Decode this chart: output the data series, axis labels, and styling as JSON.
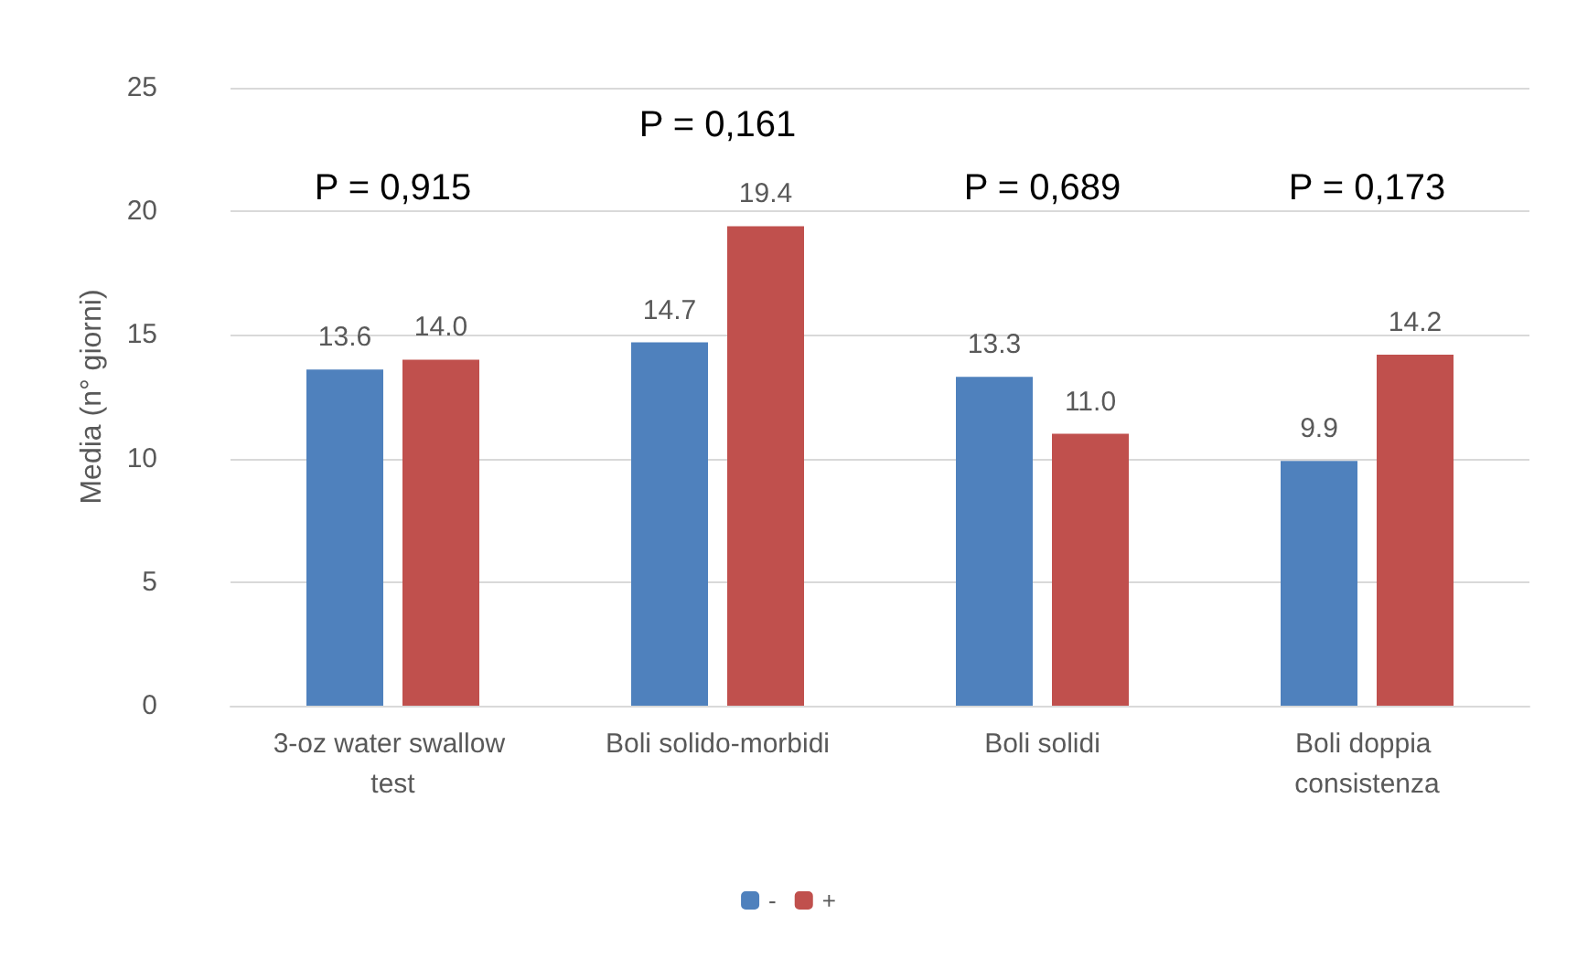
{
  "chart_data": {
    "type": "bar",
    "ylabel": "Media (n° giorni)",
    "categories": [
      "3-oz water swallow test",
      "Boli solido-morbidi",
      "Boli solidi",
      "Boli doppia consistenza"
    ],
    "series": [
      {
        "name": "-",
        "color": "#4f81bd",
        "values": [
          13.6,
          14.7,
          13.3,
          9.9
        ],
        "value_labels": [
          "13.6",
          "14.7",
          "13.3",
          "9.9"
        ]
      },
      {
        "name": "+",
        "color": "#c0504d",
        "values": [
          14.0,
          19.4,
          11.0,
          14.2
        ],
        "value_labels": [
          "14.0",
          "19.4",
          "11.0",
          "14.2"
        ]
      }
    ],
    "ylim": [
      0,
      25
    ],
    "yticks": [
      0,
      5,
      10,
      15,
      20,
      25
    ],
    "grid": "y",
    "legend": "bottom",
    "annotations": [
      "P = 0,915",
      "P = 0,161",
      "P = 0,689",
      "P = 0,173"
    ]
  }
}
